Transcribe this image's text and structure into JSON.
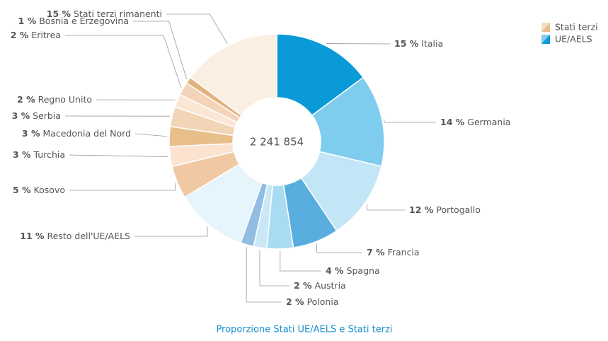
{
  "chart_data": {
    "type": "donut",
    "center_label": "2 241 854",
    "categories": [
      "Italia",
      "Germania",
      "Portogallo",
      "Francia",
      "Spagna",
      "Austria",
      "Polonia",
      "Resto dell'UE/AELS",
      "Kosovo",
      "Turchia",
      "Macedonia del Nord",
      "Serbia",
      "Regno Unito",
      "Eritrea",
      "Bosnia e Erzegovina",
      "Stati terzi rimanenti"
    ],
    "values": [
      15,
      14,
      12,
      7,
      4,
      2,
      2,
      11,
      5,
      3,
      3,
      3,
      2,
      2,
      1,
      15
    ],
    "value_labels": [
      "15 %",
      "14 %",
      "12 %",
      "7 %",
      "4 %",
      "2 %",
      "2 %",
      "11 %",
      "5 %",
      "3 %",
      "3 %",
      "3 %",
      "2 %",
      "2 %",
      "1 %",
      "15 %"
    ],
    "colors": [
      "#0a9ad7",
      "#7fcdee",
      "#c2e6f5",
      "#5aaedf",
      "#a9dcf3",
      "#c8e8f6",
      "#92bde3",
      "#e6f4fb",
      "#f0c9a4",
      "#fbe3d0",
      "#e8bf8a",
      "#f2d4b6",
      "#fbe6d6",
      "#f3d4b8",
      "#e1b27e",
      "#fbefe3"
    ],
    "legend": [
      {
        "name": "Stati terzi",
        "color": "#e8bf8a"
      },
      {
        "name": "UE/AELS",
        "color": "#0a9ad7"
      }
    ],
    "link": "Proporzione Stati UE/AELS e Stati terzi"
  }
}
